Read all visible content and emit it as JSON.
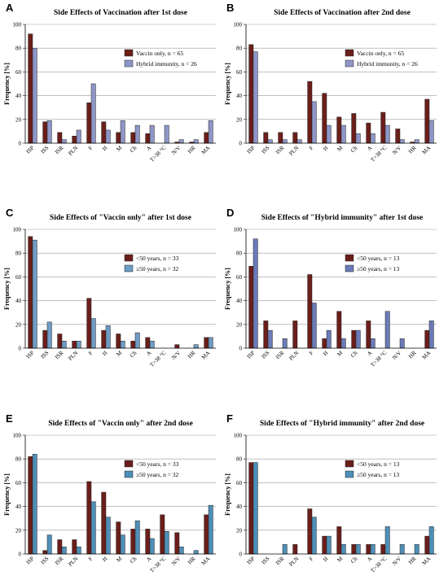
{
  "chart_data": [
    {
      "type": "bar",
      "letter": "A",
      "title": "Side Effects of Vaccination after 1st dose",
      "ylabel": "Frequency [%]",
      "ylim": [
        0,
        100
      ],
      "yticks": [
        0,
        20,
        40,
        60,
        80,
        100
      ],
      "grid": true,
      "legend": "top-right",
      "categories": [
        "ISP",
        "ISS",
        "ISR",
        "PLN",
        "F",
        "H",
        "M",
        "Ch",
        "A",
        "T>38 °C",
        "N/V",
        "HR",
        "MA"
      ],
      "series": [
        {
          "name": "Vaccin only, n = 65",
          "color": "#6B1E1A",
          "values": [
            92,
            18,
            9,
            6,
            34,
            18,
            9,
            9,
            8,
            0,
            1,
            1,
            9
          ]
        },
        {
          "name": "Hybrid immunity, n = 26",
          "color": "#8E96C8",
          "values": [
            80,
            19,
            3,
            11,
            50,
            11,
            19,
            15,
            15,
            15,
            3,
            3,
            19
          ]
        }
      ]
    },
    {
      "type": "bar",
      "letter": "B",
      "title": "Side Effects of Vaccination after 2nd dose",
      "ylabel": "Frequency [%]",
      "ylim": [
        0,
        100
      ],
      "yticks": [
        0,
        20,
        40,
        60,
        80,
        100
      ],
      "grid": true,
      "legend": "top-right",
      "categories": [
        "ISP",
        "ISS",
        "ISR",
        "PLN",
        "F",
        "H",
        "M",
        "Ch",
        "A",
        "T>38 °C",
        "N/V",
        "HR",
        "MA"
      ],
      "series": [
        {
          "name": "Vaccin only, n = 65",
          "color": "#6B1E1A",
          "values": [
            83,
            9,
            9,
            9,
            52,
            42,
            22,
            25,
            17,
            26,
            12,
            1,
            37
          ]
        },
        {
          "name": "Hybrid immunity, n = 26",
          "color": "#8E96C8",
          "values": [
            77,
            3,
            3,
            3,
            35,
            15,
            15,
            8,
            8,
            15,
            3,
            3,
            19
          ]
        }
      ]
    },
    {
      "type": "bar",
      "letter": "C",
      "title": "Side Effects of \"Vaccin only\" after 1st dose",
      "ylabel": "Frequency [%]",
      "ylim": [
        0,
        100
      ],
      "yticks": [
        0,
        20,
        40,
        60,
        80,
        100
      ],
      "grid": true,
      "legend": "top-right",
      "categories": [
        "ISP",
        "ISS",
        "ISR",
        "PLN",
        "F",
        "H",
        "M",
        "Ch",
        "A",
        "T>38 °C",
        "N/V",
        "HR",
        "MA"
      ],
      "series": [
        {
          "name": "<50 years, n = 33",
          "color": "#6B1E1A",
          "values": [
            94,
            15,
            12,
            6,
            42,
            15,
            12,
            6,
            9,
            0,
            3,
            0,
            9
          ]
        },
        {
          "name": "≥50 years, n = 32",
          "color": "#6E9CC4",
          "values": [
            91,
            22,
            6,
            6,
            25,
            19,
            6,
            13,
            6,
            0,
            0,
            3,
            9
          ]
        }
      ]
    },
    {
      "type": "bar",
      "letter": "D",
      "title": "Side Effects of \"Hybrid immunity\" after 1st dose",
      "ylabel": "Frequency [%]",
      "ylim": [
        0,
        100
      ],
      "yticks": [
        0,
        20,
        40,
        60,
        80,
        100
      ],
      "grid": true,
      "legend": "top-right",
      "categories": [
        "ISP",
        "ISS",
        "ISR",
        "PLN",
        "F",
        "H",
        "M",
        "Ch",
        "A",
        "T>38 °C",
        "N/V",
        "HR",
        "MA"
      ],
      "series": [
        {
          "name": "<50 years, n = 13",
          "color": "#6B1E1A",
          "values": [
            69,
            23,
            0,
            23,
            62,
            8,
            31,
            15,
            23,
            0,
            0,
            0,
            15
          ]
        },
        {
          "name": "≥50 years, n = 13",
          "color": "#6B7BB8",
          "values": [
            92,
            15,
            8,
            0,
            38,
            15,
            8,
            15,
            8,
            31,
            8,
            0,
            23
          ]
        }
      ]
    },
    {
      "type": "bar",
      "letter": "E",
      "title": "Side Effects of \"Vaccin only\" after 2nd dose",
      "ylabel": "Frequency [%]",
      "ylim": [
        0,
        100
      ],
      "yticks": [
        0,
        20,
        40,
        60,
        80,
        100
      ],
      "grid": true,
      "legend": "top-right",
      "categories": [
        "ISP",
        "ISS",
        "ISR",
        "PLN",
        "F",
        "H",
        "M",
        "Ch",
        "A",
        "T>38 °C",
        "N/V",
        "HR",
        "MA"
      ],
      "series": [
        {
          "name": "<50 years, n = 33",
          "color": "#6B1E1A",
          "values": [
            82,
            3,
            12,
            12,
            61,
            52,
            27,
            21,
            21,
            33,
            18,
            0,
            33
          ]
        },
        {
          "name": "≥50 years, n = 32",
          "color": "#4E8FB8",
          "values": [
            84,
            16,
            6,
            6,
            44,
            31,
            16,
            28,
            13,
            19,
            6,
            3,
            41
          ]
        }
      ]
    },
    {
      "type": "bar",
      "letter": "F",
      "title": "Side Effects of \"Hybrid immunity\" after 2nd dose",
      "ylabel": "Frequency [%]",
      "ylim": [
        0,
        100
      ],
      "yticks": [
        0,
        20,
        40,
        60,
        80,
        100
      ],
      "grid": true,
      "legend": "top-right",
      "categories": [
        "ISP",
        "ISS",
        "ISR",
        "PLN",
        "F",
        "H",
        "M",
        "Ch",
        "A",
        "T>38 °C",
        "N/V",
        "HR",
        "MA"
      ],
      "series": [
        {
          "name": "<50 years, n = 13",
          "color": "#6B1E1A",
          "values": [
            77,
            0,
            0,
            8,
            38,
            15,
            23,
            8,
            8,
            8,
            0,
            0,
            15
          ]
        },
        {
          "name": "≥50 years, n = 13",
          "color": "#4E8FB8",
          "values": [
            77,
            0,
            8,
            0,
            31,
            15,
            8,
            8,
            8,
            23,
            8,
            8,
            23
          ]
        }
      ]
    }
  ]
}
